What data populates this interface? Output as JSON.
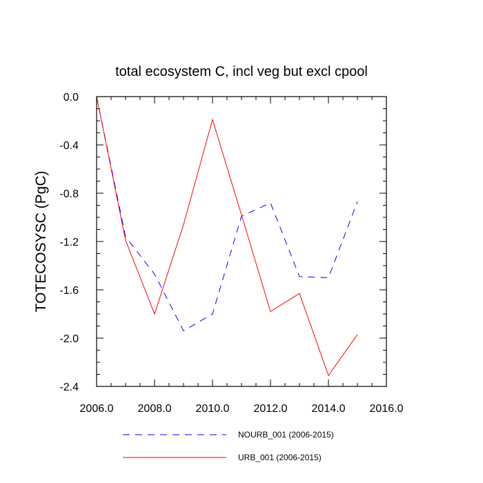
{
  "chart_data": {
    "type": "line",
    "title": "total ecosystem C, incl veg but excl cpool",
    "xlabel": "",
    "ylabel": "TOTECOSYSC  (PgC)",
    "xlim": [
      2006,
      2016
    ],
    "ylim": [
      -2.4,
      0.0
    ],
    "xticks": [
      2006,
      2008,
      2010,
      2012,
      2014,
      2016
    ],
    "xtick_labels": [
      "2006.0",
      "2008.0",
      "2010.0",
      "2012.0",
      "2014.0",
      "2016.0"
    ],
    "yticks": [
      0.0,
      -0.4,
      -0.8,
      -1.2,
      -1.6,
      -2.0,
      -2.4
    ],
    "ytick_labels": [
      "0.0",
      "-0.4",
      "-0.8",
      "-1.2",
      "-1.6",
      "-2.0",
      "-2.4"
    ],
    "grid": false,
    "legend_position": "bottom",
    "series": [
      {
        "name": "NOURB_001 (2006-2015)",
        "color": "#0000ff",
        "style": "dashed",
        "x": [
          2006,
          2007,
          2008,
          2009,
          2010,
          2011,
          2012,
          2013,
          2014,
          2015
        ],
        "y": [
          0.0,
          -1.16,
          -1.47,
          -1.94,
          -1.8,
          -0.99,
          -0.88,
          -1.49,
          -1.5,
          -0.87
        ]
      },
      {
        "name": "URB_001 (2006-2015)",
        "color": "#ff0000",
        "style": "solid",
        "x": [
          2006,
          2007,
          2008,
          2009,
          2010,
          2011,
          2012,
          2013,
          2014,
          2015
        ],
        "y": [
          0.0,
          -1.19,
          -1.8,
          -1.06,
          -0.19,
          -0.98,
          -1.78,
          -1.63,
          -2.31,
          -1.97
        ]
      }
    ]
  }
}
